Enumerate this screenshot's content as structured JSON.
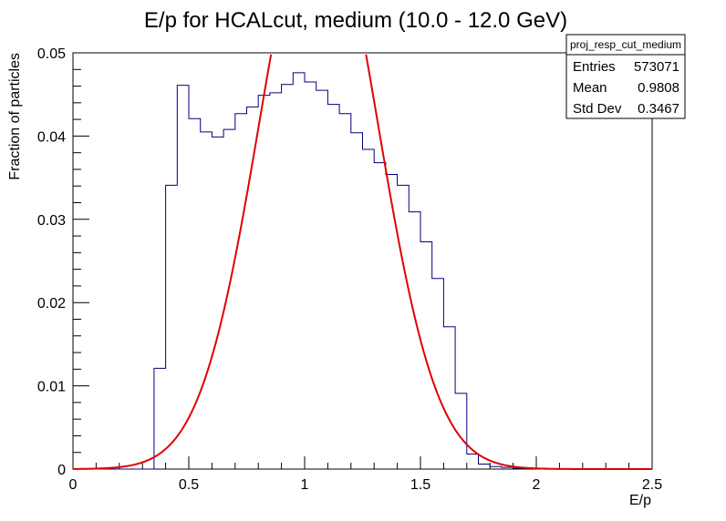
{
  "chart_data": {
    "type": "histogram",
    "title": "E/p for HCALcut, medium (10.0 - 12.0 GeV)",
    "xlabel": "E/p",
    "ylabel": "Fraction of particles",
    "xlim": [
      0,
      2.5
    ],
    "ylim": [
      0,
      0.05
    ],
    "x_ticks": [
      0,
      0.5,
      1,
      1.5,
      2,
      2.5
    ],
    "x_tick_labels": [
      "0",
      "0.5",
      "1",
      "1.5",
      "2",
      "2.5"
    ],
    "y_ticks": [
      0,
      0.01,
      0.02,
      0.03,
      0.04,
      0.05
    ],
    "y_tick_labels": [
      "0",
      "0.01",
      "0.02",
      "0.03",
      "0.04",
      "0.05"
    ],
    "grid": false,
    "histogram": {
      "color": "#000080",
      "bin_width": 0.05,
      "bin_start": 0,
      "values": [
        0,
        0,
        0,
        0,
        0,
        0,
        0,
        0.0121,
        0.0341,
        0.0461,
        0.0421,
        0.0405,
        0.0399,
        0.0408,
        0.0427,
        0.0435,
        0.0449,
        0.0452,
        0.0462,
        0.0476,
        0.0465,
        0.0455,
        0.0438,
        0.0427,
        0.0404,
        0.0384,
        0.0368,
        0.0354,
        0.0341,
        0.0309,
        0.0273,
        0.0229,
        0.0171,
        0.0091,
        0.0018,
        0.0006,
        0.0003,
        0.0002,
        0.0001,
        0.0001,
        0.0001,
        0,
        0,
        0,
        0,
        0,
        0,
        0,
        0,
        0
      ]
    },
    "fit": {
      "type": "gaussian",
      "color": "#e00000",
      "constant": 0.0688,
      "mean": 1.06,
      "sigma": 0.255,
      "range": [
        0,
        2.5
      ]
    },
    "stats_box": {
      "name": "proj_resp_cut_medium",
      "rows": [
        {
          "label": "Entries",
          "value": "573071"
        },
        {
          "label": "Mean",
          "value": "0.9808"
        },
        {
          "label": "Std Dev",
          "value": "0.3467"
        }
      ]
    }
  }
}
